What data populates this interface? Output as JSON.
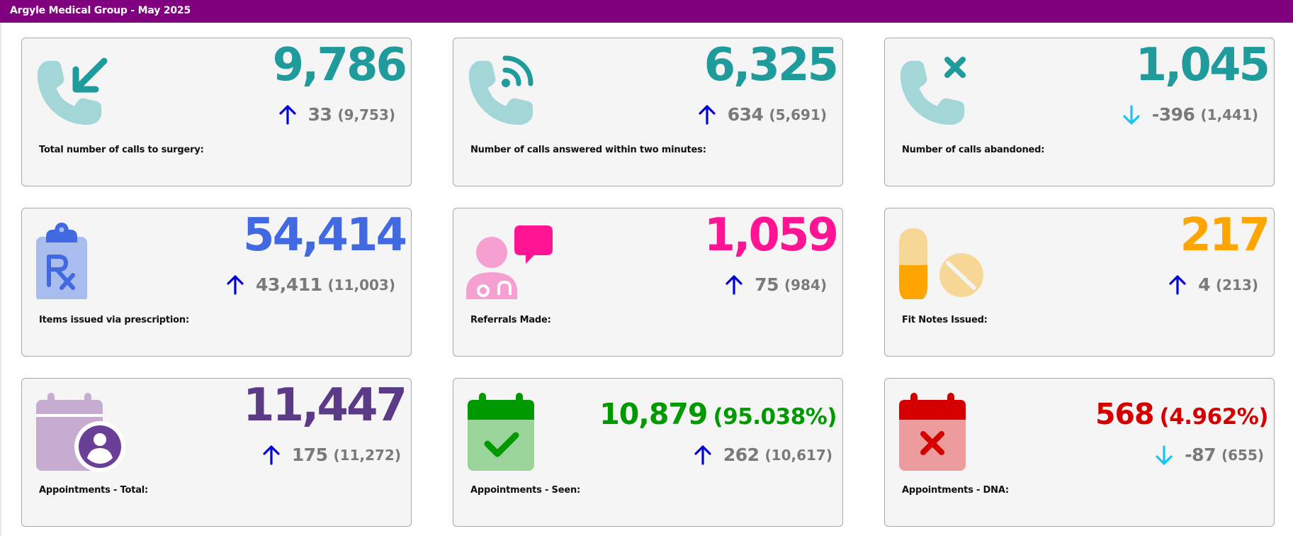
{
  "header": {
    "title": "Argyle Medical Group - May 2025"
  },
  "colors": {
    "header_bg": "#800080",
    "trend_up": "#0000d8",
    "trend_down": "#18c4f2",
    "teal": "#1f9b9c",
    "blue": "#4169e1",
    "pink": "#ff1493",
    "orange": "#ffa500",
    "purple": "#5b3a87",
    "green": "#009900",
    "red": "#d40000"
  },
  "cards": [
    {
      "label": "Total number of calls to surgery:",
      "value": "9,786",
      "trend": "up",
      "delta": "33",
      "previous": "(9,753)",
      "icon": "phone-incoming-icon",
      "color": "#1f9b9c"
    },
    {
      "label": "Number of calls answered within two minutes:",
      "value": "6,325",
      "trend": "up",
      "delta": "634",
      "previous": "(5,691)",
      "icon": "phone-answered-icon",
      "color": "#1f9b9c"
    },
    {
      "label": "Number of calls abandoned:",
      "value": "1,045",
      "trend": "down",
      "delta": "-396",
      "previous": "(1,441)",
      "icon": "phone-missed-icon",
      "color": "#1f9b9c"
    },
    {
      "label": "Items issued via prescription:",
      "value": "54,414",
      "trend": "up",
      "delta": "43,411",
      "previous": "(11,003)",
      "icon": "prescription-clipboard-icon",
      "color": "#4169e1"
    },
    {
      "label": "Referrals Made:",
      "value": "1,059",
      "trend": "up",
      "delta": "75",
      "previous": "(984)",
      "icon": "doctor-referral-icon",
      "color": "#ff1493"
    },
    {
      "label": "Fit Notes Issued:",
      "value": "217",
      "trend": "up",
      "delta": "4",
      "previous": "(213)",
      "icon": "pills-icon",
      "color": "#ffa500"
    },
    {
      "label": "Appointments - Total:",
      "value": "11,447",
      "trend": "up",
      "delta": "175",
      "previous": "(11,272)",
      "icon": "calendar-user-icon",
      "color": "#5b3a87"
    },
    {
      "label": "Appointments - Seen:",
      "value": "10,879",
      "percent": "(95.038%)",
      "trend": "up",
      "delta": "262",
      "previous": "(10,617)",
      "icon": "calendar-check-icon",
      "color": "#009900"
    },
    {
      "label": "Appointments - DNA:",
      "value": "568",
      "percent": "(4.962%)",
      "trend": "down",
      "delta": "-87",
      "previous": "(655)",
      "icon": "calendar-cross-icon",
      "color": "#d40000"
    }
  ]
}
